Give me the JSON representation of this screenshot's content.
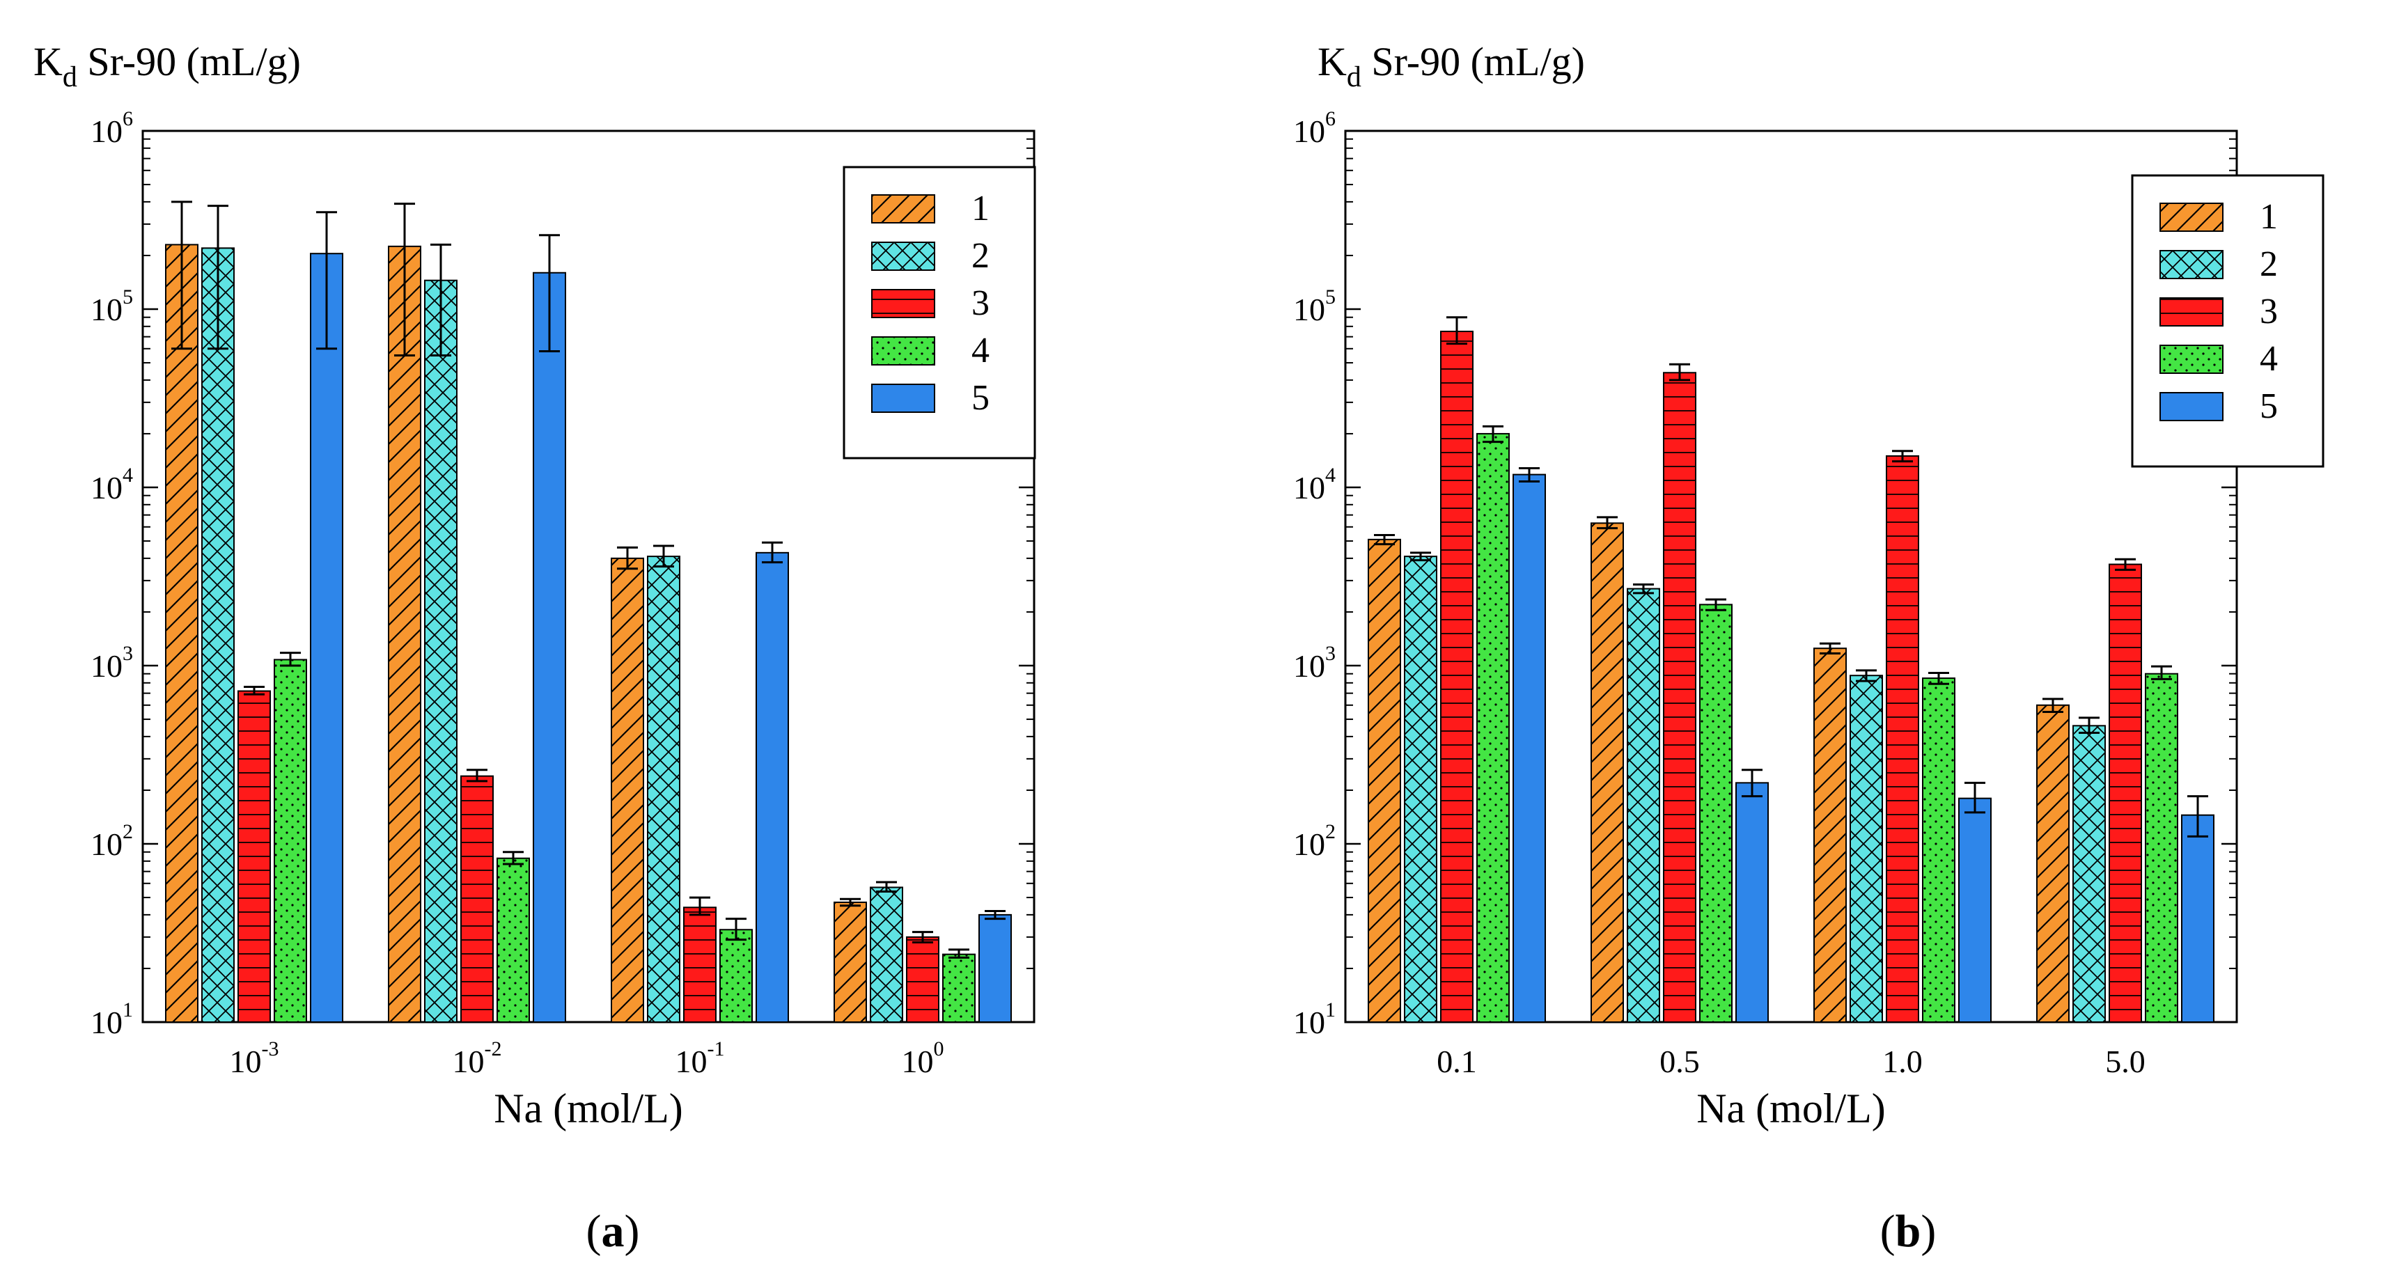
{
  "colors": {
    "s1": "#f7962f",
    "s2": "#5fe3e3",
    "s3": "#ff1a1a",
    "s4": "#44e544",
    "s5": "#2e86ea"
  },
  "chart_data": [
    {
      "type": "bar",
      "panel_label": {
        "open": "(",
        "letter": "a",
        "close": ")"
      },
      "ylabel": {
        "main": "K",
        "sub": "d",
        "rest": " Sr-90 (mL/g)"
      },
      "xlabel": "Na (mol/L)",
      "yscale": "log",
      "ylim": [
        10,
        1000000
      ],
      "yticks": [
        {
          "base": "10",
          "exp": "1"
        },
        {
          "base": "10",
          "exp": "2"
        },
        {
          "base": "10",
          "exp": "3"
        },
        {
          "base": "10",
          "exp": "4"
        },
        {
          "base": "10",
          "exp": "5"
        },
        {
          "base": "10",
          "exp": "6"
        }
      ],
      "categories": [
        {
          "base": "10",
          "exp": "-3"
        },
        {
          "base": "10",
          "exp": "-2"
        },
        {
          "base": "10",
          "exp": "-1"
        },
        {
          "base": "10",
          "exp": "0"
        }
      ],
      "legend": {
        "position": "top-right"
      },
      "series": [
        {
          "name": "1",
          "values": [
            230000,
            225000,
            4000,
            47
          ],
          "err_low": [
            60000,
            55000,
            3500,
            45
          ],
          "err_high": [
            400000,
            390000,
            4600,
            49
          ]
        },
        {
          "name": "2",
          "values": [
            220000,
            145000,
            4100,
            57
          ],
          "err_low": [
            60000,
            55000,
            3600,
            54
          ],
          "err_high": [
            380000,
            230000,
            4700,
            61
          ]
        },
        {
          "name": "3",
          "values": [
            720,
            240,
            44,
            30
          ],
          "err_low": [
            690,
            225,
            40,
            28
          ],
          "err_high": [
            760,
            260,
            50,
            32
          ]
        },
        {
          "name": "4",
          "values": [
            1080,
            83,
            33,
            24
          ],
          "err_low": [
            1000,
            77,
            29,
            23
          ],
          "err_high": [
            1180,
            90,
            38,
            25.5
          ]
        },
        {
          "name": "5",
          "values": [
            205000,
            160000,
            4300,
            40
          ],
          "err_low": [
            60000,
            58000,
            3800,
            38
          ],
          "err_high": [
            350000,
            260000,
            4900,
            42
          ]
        }
      ]
    },
    {
      "type": "bar",
      "panel_label": {
        "open": "(",
        "letter": "b",
        "close": ")"
      },
      "ylabel": {
        "main": "K",
        "sub": "d",
        "rest": " Sr-90 (mL/g)"
      },
      "xlabel": "Na (mol/L)",
      "yscale": "log",
      "ylim": [
        10,
        1000000
      ],
      "yticks": [
        {
          "base": "10",
          "exp": "1"
        },
        {
          "base": "10",
          "exp": "2"
        },
        {
          "base": "10",
          "exp": "3"
        },
        {
          "base": "10",
          "exp": "4"
        },
        {
          "base": "10",
          "exp": "5"
        },
        {
          "base": "10",
          "exp": "6"
        }
      ],
      "categories": [
        {
          "base": "0.1",
          "exp": ""
        },
        {
          "base": "0.5",
          "exp": ""
        },
        {
          "base": "1.0",
          "exp": ""
        },
        {
          "base": "5.0",
          "exp": ""
        }
      ],
      "legend": {
        "position": "top-right"
      },
      "series": [
        {
          "name": "1",
          "values": [
            5100,
            6300,
            1250,
            600
          ],
          "err_low": [
            4800,
            5900,
            1170,
            550
          ],
          "err_high": [
            5400,
            6800,
            1330,
            650
          ]
        },
        {
          "name": "2",
          "values": [
            4100,
            2700,
            880,
            460
          ],
          "err_low": [
            3900,
            2550,
            820,
            420
          ],
          "err_high": [
            4300,
            2850,
            940,
            510
          ]
        },
        {
          "name": "3",
          "values": [
            75000,
            44000,
            15000,
            3700
          ],
          "err_low": [
            64000,
            40000,
            14000,
            3450
          ],
          "err_high": [
            90000,
            49000,
            16000,
            3950
          ]
        },
        {
          "name": "4",
          "values": [
            20000,
            2200,
            850,
            900
          ],
          "err_low": [
            18000,
            2050,
            790,
            840
          ],
          "err_high": [
            22000,
            2350,
            910,
            990
          ]
        },
        {
          "name": "5",
          "values": [
            11800,
            220,
            180,
            145
          ],
          "err_low": [
            10800,
            185,
            150,
            110
          ],
          "err_high": [
            12800,
            260,
            220,
            185
          ]
        }
      ]
    }
  ]
}
